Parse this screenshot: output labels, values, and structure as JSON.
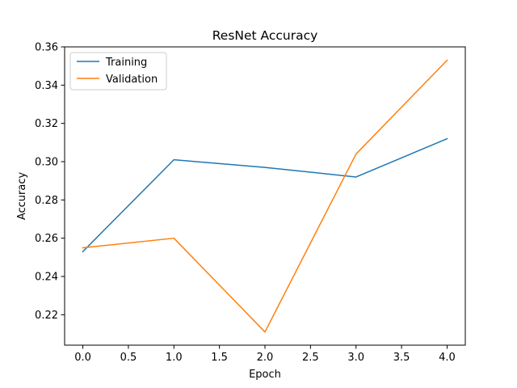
{
  "chart_data": {
    "type": "line",
    "title": "ResNet Accuracy",
    "xlabel": "Epoch",
    "ylabel": "Accuracy",
    "x": [
      0,
      1,
      2,
      3,
      4
    ],
    "xlim": [
      -0.2,
      4.2
    ],
    "ylim": [
      0.2041,
      0.36
    ],
    "xticks": [
      "0.0",
      "0.5",
      "1.0",
      "1.5",
      "2.0",
      "2.5",
      "3.0",
      "3.5",
      "4.0"
    ],
    "yticks": [
      "0.22",
      "0.24",
      "0.26",
      "0.28",
      "0.30",
      "0.32",
      "0.34",
      "0.36"
    ],
    "grid": false,
    "legend_position": "top-left",
    "series": [
      {
        "name": "Training",
        "color": "#1f77b4",
        "values": [
          0.253,
          0.301,
          0.297,
          0.292,
          0.312
        ]
      },
      {
        "name": "Validation",
        "color": "#ff7f0e",
        "values": [
          0.255,
          0.26,
          0.211,
          0.304,
          0.353
        ]
      }
    ]
  }
}
